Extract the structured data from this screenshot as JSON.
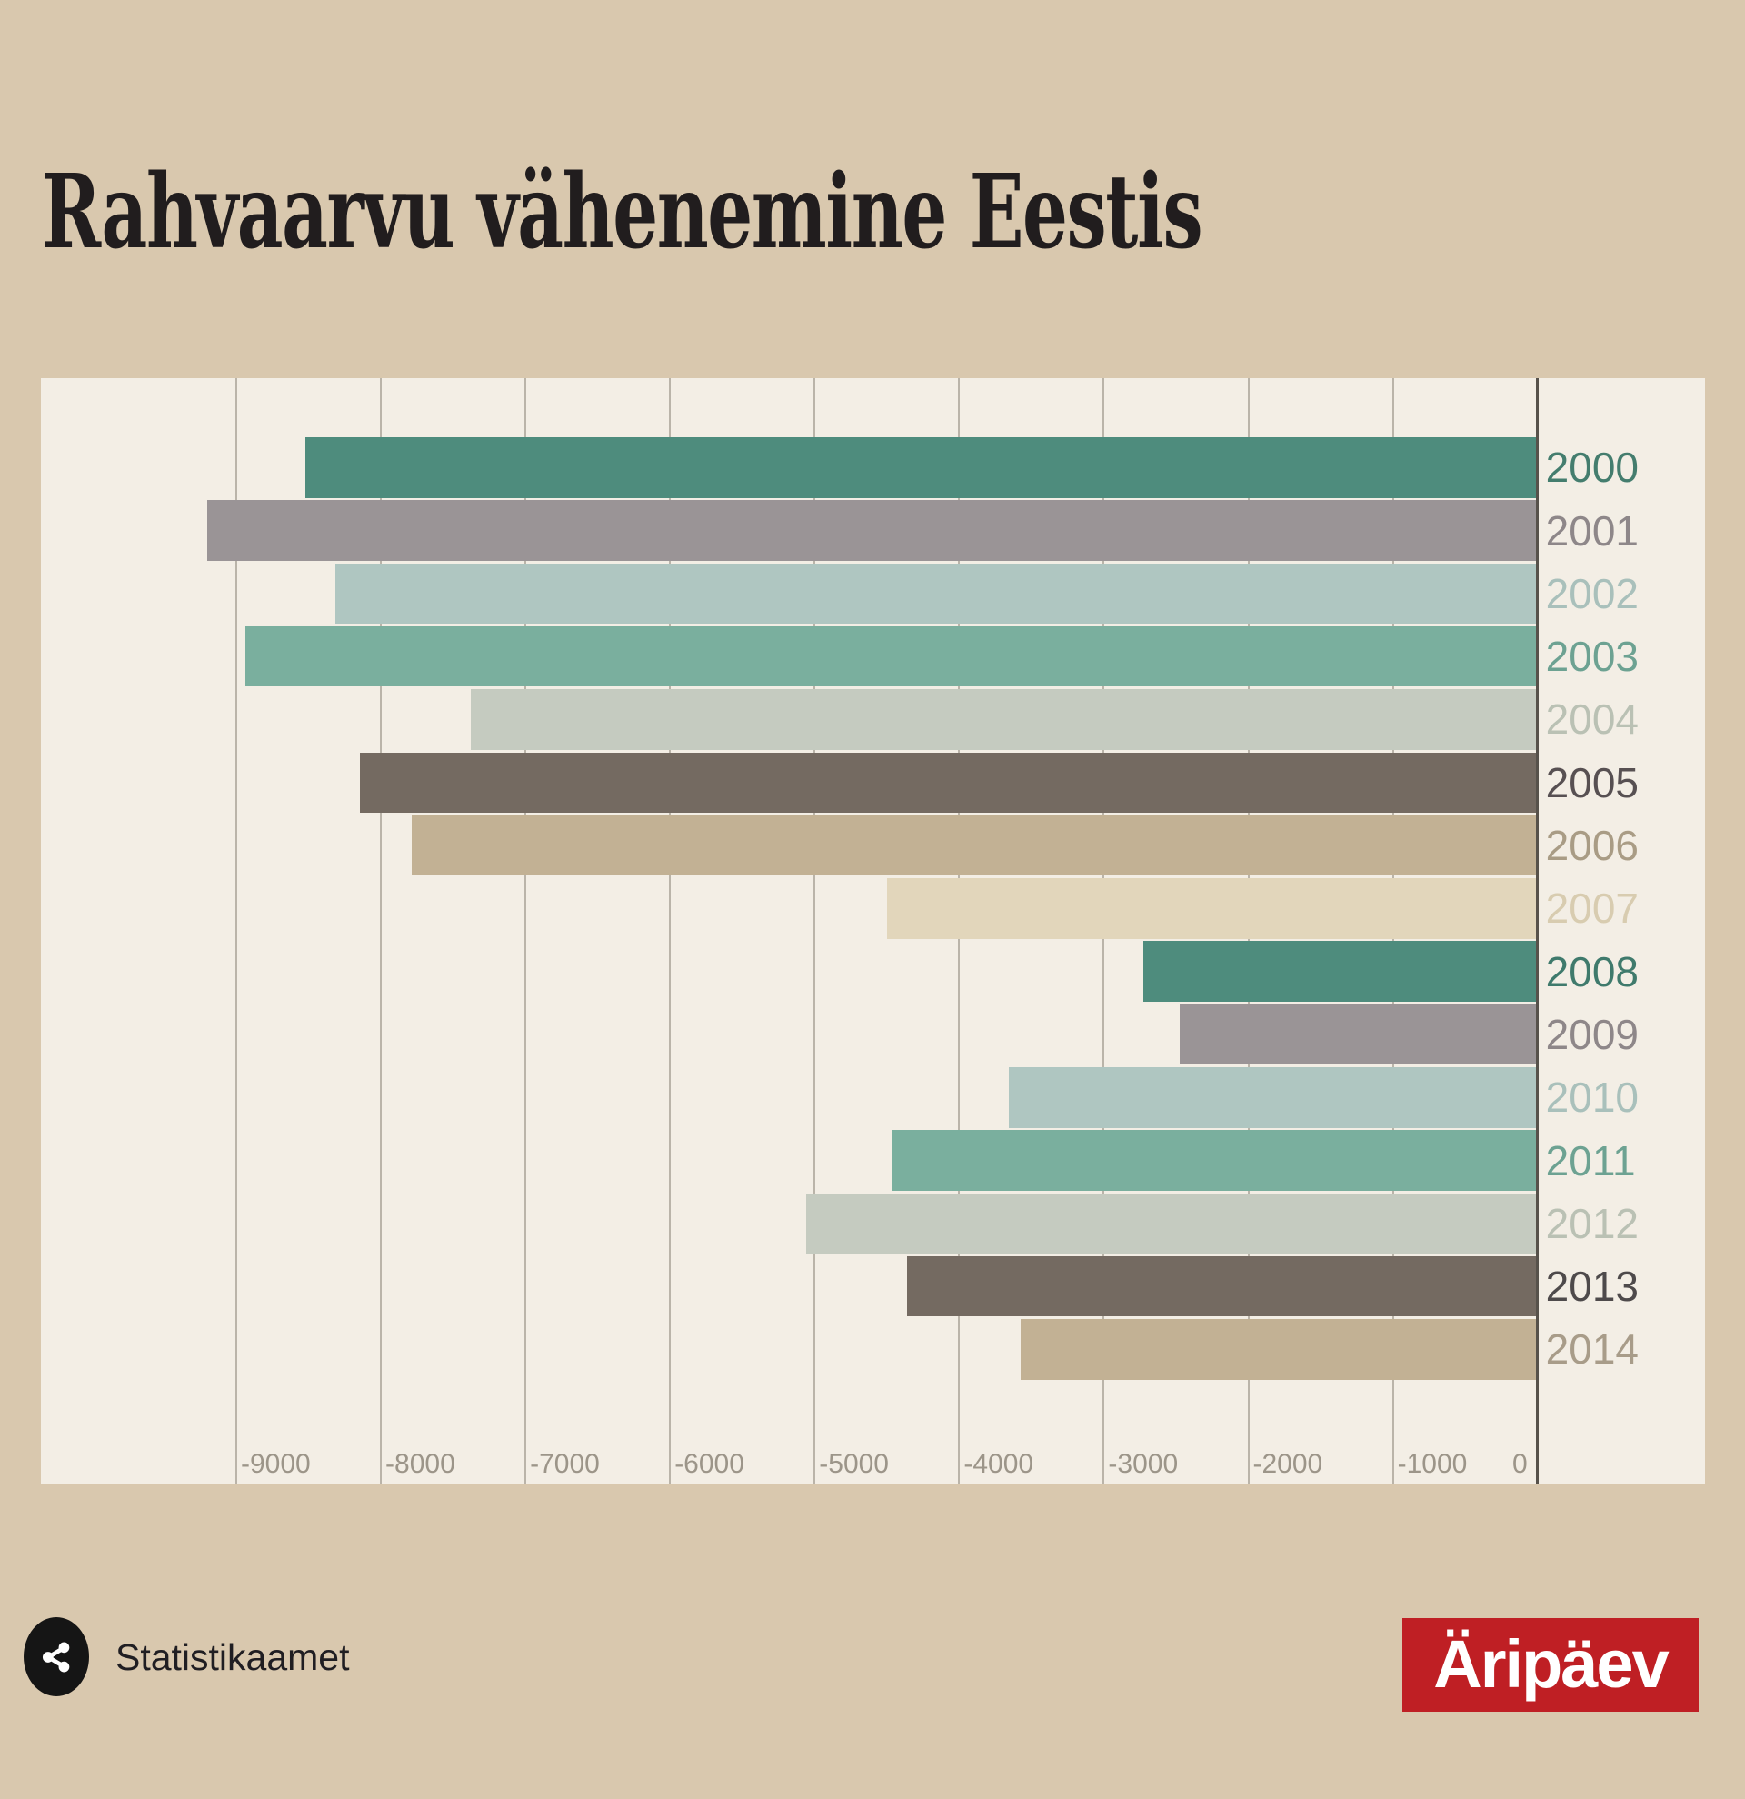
{
  "title": "Rahvaarvu vähenemine Eestis",
  "source": {
    "label": "Statistikaamet"
  },
  "logo": {
    "text": "Äripäev",
    "bg": "#bf1f24",
    "fg": "#ffffff"
  },
  "page": {
    "background": "#d9c8ae",
    "plot_background": "#f3eee5",
    "gridline_color": "#8b8579",
    "zero_line_color": "#57524b",
    "tick_label_color": "#9c9589"
  },
  "chart_data": {
    "type": "bar",
    "orientation": "horizontal",
    "title": "Rahvaarvu vähenemine Eestis",
    "categories": [
      "2000",
      "2001",
      "2002",
      "2003",
      "2004",
      "2005",
      "2006",
      "2007",
      "2008",
      "2009",
      "2010",
      "2011",
      "2012",
      "2013",
      "2014"
    ],
    "values": [
      -8515,
      -9195,
      -8310,
      -8930,
      -7370,
      -8140,
      -7780,
      -4490,
      -2720,
      -2470,
      -3650,
      -4460,
      -5050,
      -4355,
      -3570
    ],
    "xlabel": "",
    "ylabel": "",
    "xlim": [
      -10345,
      1165
    ],
    "xticks": [
      -9000,
      -8000,
      -7000,
      -6000,
      -5000,
      -4000,
      -3000,
      -2000,
      -1000,
      0
    ],
    "grid": true,
    "legend": "none",
    "bar_colors": [
      "#4e8c7d",
      "#9a9496",
      "#afc6c1",
      "#7aaf9e",
      "#c5cbc0",
      "#746a61",
      "#c2b194",
      "#e2d6bb",
      "#4e8c7d",
      "#9a9496",
      "#afc6c1",
      "#7aaf9e",
      "#c5cbc0",
      "#746a61",
      "#c2b194"
    ],
    "label_colors": [
      "#447d6e",
      "#8e8789",
      "#a9c0bb",
      "#6da292",
      "#bac1b4",
      "#575052",
      "#a99c85",
      "#d8ccb0",
      "#3f7a6c",
      "#8e8789",
      "#a9c0bb",
      "#6da292",
      "#bac1b4",
      "#4e4a4b",
      "#a89c89"
    ]
  }
}
